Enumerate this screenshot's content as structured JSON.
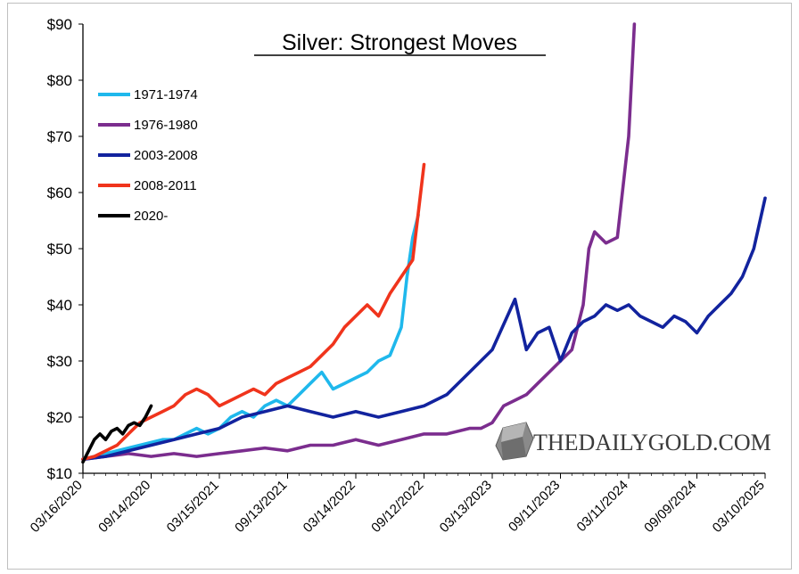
{
  "chart_data": {
    "type": "line",
    "title": "Silver: Strongest Moves",
    "xlabel": "",
    "ylabel": "",
    "ylim": [
      10,
      90
    ],
    "y_ticks": [
      "$10",
      "$20",
      "$30",
      "$40",
      "$50",
      "$60",
      "$70",
      "$80",
      "$90"
    ],
    "x_ticks": [
      "03/16/2020",
      "09/14/2020",
      "03/15/2021",
      "09/13/2021",
      "03/14/2022",
      "09/12/2022",
      "03/13/2023",
      "09/11/2023",
      "03/11/2024",
      "09/09/2024",
      "03/10/2025"
    ],
    "x_range_months": [
      0,
      60
    ],
    "x_unit": "months from 03/16/2020",
    "legend_position": "top-left",
    "grid": false,
    "series": [
      {
        "name": "1971-1974",
        "color": "#1fb8ec",
        "x": [
          0,
          1,
          2,
          3,
          4,
          5,
          6,
          7,
          8,
          9,
          10,
          11,
          12,
          13,
          14,
          15,
          16,
          17,
          18,
          19,
          20,
          21,
          22,
          23,
          24,
          25,
          26,
          27,
          28,
          28.5,
          29,
          29.5
        ],
        "y": [
          12.5,
          13,
          13.5,
          14,
          14.5,
          15,
          15.5,
          16,
          16,
          17,
          18,
          17,
          18,
          20,
          21,
          20,
          22,
          23,
          22,
          24,
          26,
          28,
          25,
          26,
          27,
          28,
          30,
          31,
          36,
          45,
          52,
          56
        ]
      },
      {
        "name": "1976-1980",
        "color": "#7b2d8e",
        "x": [
          0,
          2,
          4,
          6,
          8,
          10,
          12,
          14,
          16,
          18,
          20,
          22,
          24,
          26,
          28,
          30,
          32,
          34,
          35,
          36,
          37,
          38,
          39,
          40,
          41,
          42,
          43,
          44,
          44.5,
          45,
          45.5,
          46,
          47,
          48,
          48.5
        ],
        "y": [
          12.5,
          13,
          13.5,
          13,
          13.5,
          13,
          13.5,
          14,
          14.5,
          14,
          15,
          15,
          16,
          15,
          16,
          17,
          17,
          18,
          18,
          19,
          22,
          23,
          24,
          26,
          28,
          30,
          32,
          40,
          50,
          53,
          52,
          51,
          52,
          70,
          90
        ]
      },
      {
        "name": "2003-2008",
        "color": "#12239e",
        "x": [
          0,
          2,
          4,
          6,
          8,
          10,
          12,
          14,
          16,
          18,
          20,
          22,
          24,
          26,
          28,
          30,
          32,
          34,
          36,
          38,
          39,
          40,
          41,
          42,
          43,
          44,
          45,
          46,
          47,
          48,
          49,
          50,
          51,
          52,
          53,
          54,
          55,
          56,
          57,
          58,
          59,
          60
        ],
        "y": [
          12.5,
          13,
          14,
          15,
          16,
          17,
          18,
          20,
          21,
          22,
          21,
          20,
          21,
          20,
          21,
          22,
          24,
          28,
          32,
          41,
          32,
          35,
          36,
          30,
          35,
          37,
          38,
          40,
          39,
          40,
          38,
          37,
          36,
          38,
          37,
          35,
          38,
          40,
          42,
          45,
          50,
          59
        ]
      },
      {
        "name": "2008-2011",
        "color": "#f0341c",
        "x": [
          0,
          1,
          2,
          3,
          4,
          5,
          6,
          7,
          8,
          9,
          10,
          11,
          12,
          13,
          14,
          15,
          16,
          17,
          18,
          19,
          20,
          21,
          22,
          23,
          24,
          25,
          26,
          27,
          28,
          29,
          30
        ],
        "y": [
          12.5,
          13,
          14,
          15,
          17,
          19,
          20,
          21,
          22,
          24,
          25,
          24,
          22,
          23,
          24,
          25,
          24,
          26,
          27,
          28,
          29,
          31,
          33,
          36,
          38,
          40,
          38,
          42,
          45,
          48,
          65
        ]
      },
      {
        "name": "2020-",
        "color": "#000000",
        "x": [
          0,
          0.5,
          1,
          1.5,
          2,
          2.5,
          3,
          3.5,
          4,
          4.5,
          5,
          5.5,
          6
        ],
        "y": [
          12,
          14,
          16,
          17,
          16,
          17.5,
          18,
          17,
          18.5,
          19,
          18.5,
          20,
          22
        ]
      }
    ]
  },
  "watermark": {
    "label": "THEDAILYGOLD.COM"
  }
}
